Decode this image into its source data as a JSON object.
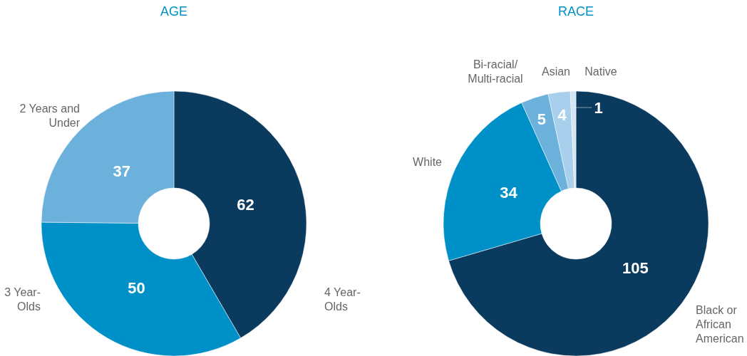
{
  "chart_data": [
    {
      "type": "donut",
      "title": "AGE",
      "categories": [
        "4 Year-Olds",
        "3 Year-Olds",
        "2 Years and Under"
      ],
      "values": [
        62,
        50,
        37
      ],
      "colors": [
        "#0a3a5e",
        "#0090c8",
        "#6cb0dc"
      ],
      "data_labels": true
    },
    {
      "type": "donut",
      "title": "RACE",
      "categories": [
        "Black or African American",
        "White",
        "Bi-racial/Multi-racial",
        "Asian",
        "Native"
      ],
      "values": [
        105,
        34,
        5,
        4,
        1
      ],
      "colors": [
        "#0a3a5e",
        "#0090c8",
        "#6cb0dc",
        "#a8d0ec",
        "#d4e6f4"
      ],
      "data_labels": true
    }
  ]
}
